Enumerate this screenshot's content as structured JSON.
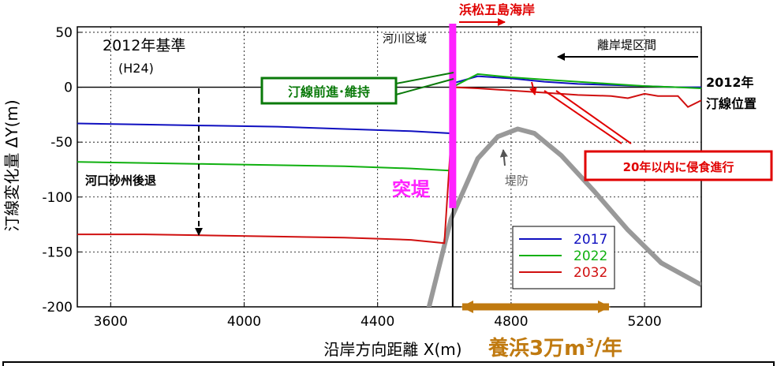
{
  "chart_data": {
    "type": "line",
    "xlabel": "沿岸方向距離 X(m)",
    "ylabel": "汀線変化量 ΔY(m)",
    "xlim": [
      3500,
      5370
    ],
    "ylim": [
      -200,
      55
    ],
    "x_ticks": [
      3600,
      4000,
      4400,
      4800,
      5200
    ],
    "y_ticks": [
      50,
      0,
      -50,
      -100,
      -150,
      -200
    ],
    "grid": true,
    "legend_position": "right-lower",
    "series": [
      {
        "name": "2017",
        "color": "#1010c0",
        "x": [
          3500,
          3700,
          3900,
          4100,
          4300,
          4500,
          4620,
          4630,
          4700,
          4800,
          4900,
          5000,
          5100,
          5200,
          5300,
          5370
        ],
        "y": [
          -33,
          -34,
          -35,
          -36,
          -38,
          -40,
          -42,
          4,
          10,
          8,
          5,
          3,
          2,
          1,
          0,
          0
        ]
      },
      {
        "name": "2022",
        "color": "#10b010",
        "x": [
          3500,
          3700,
          3900,
          4100,
          4300,
          4500,
          4620,
          4630,
          4700,
          4800,
          4900,
          5000,
          5100,
          5200,
          5300,
          5370
        ],
        "y": [
          -68,
          -69,
          -70,
          -71,
          -72,
          -74,
          -76,
          1,
          12,
          9,
          7,
          5,
          3,
          1,
          0,
          -1
        ]
      },
      {
        "name": "2032",
        "color": "#d01010",
        "x": [
          3500,
          3700,
          3900,
          4100,
          4300,
          4500,
          4600,
          4630,
          4700,
          4800,
          4900,
          5000,
          5100,
          5150,
          5200,
          5240,
          5300,
          5330,
          5370
        ],
        "y": [
          -134,
          -134,
          -135,
          -136,
          -137,
          -139,
          -142,
          0,
          -1,
          -3,
          -5,
          -7,
          -8,
          -10,
          -6,
          -8,
          -8,
          -18,
          -12
        ]
      }
    ],
    "levee": {
      "label": "堤防",
      "color": "#999999",
      "x": [
        4550,
        4620,
        4700,
        4760,
        4820,
        4870,
        4950,
        5050,
        5150,
        5250,
        5370
      ],
      "y": [
        -205,
        -120,
        -65,
        -45,
        -38,
        -42,
        -62,
        -95,
        -130,
        -160,
        -180
      ]
    },
    "groyne": {
      "label": "突堤",
      "color": "#ff22ff",
      "x": 4625,
      "y_top": 55,
      "y_bottom": -110
    },
    "vertical_marker_x": 4625,
    "annotations": {
      "baseline_label_1": "2012年基準",
      "baseline_label_2": "(H24)",
      "river_zone": "河川区域",
      "beach_name": "浜松五島海岸",
      "detached_breakwater": "離岸堤区間",
      "shoreline_2012_line1": "2012年",
      "shoreline_2012_line2": "汀線位置",
      "advance_maintain": "汀線前進･維持",
      "erosion_20yr": "20年以内に侵食進行",
      "river_mouth_retreat": "河口砂州後退",
      "nourishment_prefix": "養浜3万m",
      "nourishment_sup": "3",
      "nourishment_suffix": "/年"
    }
  }
}
